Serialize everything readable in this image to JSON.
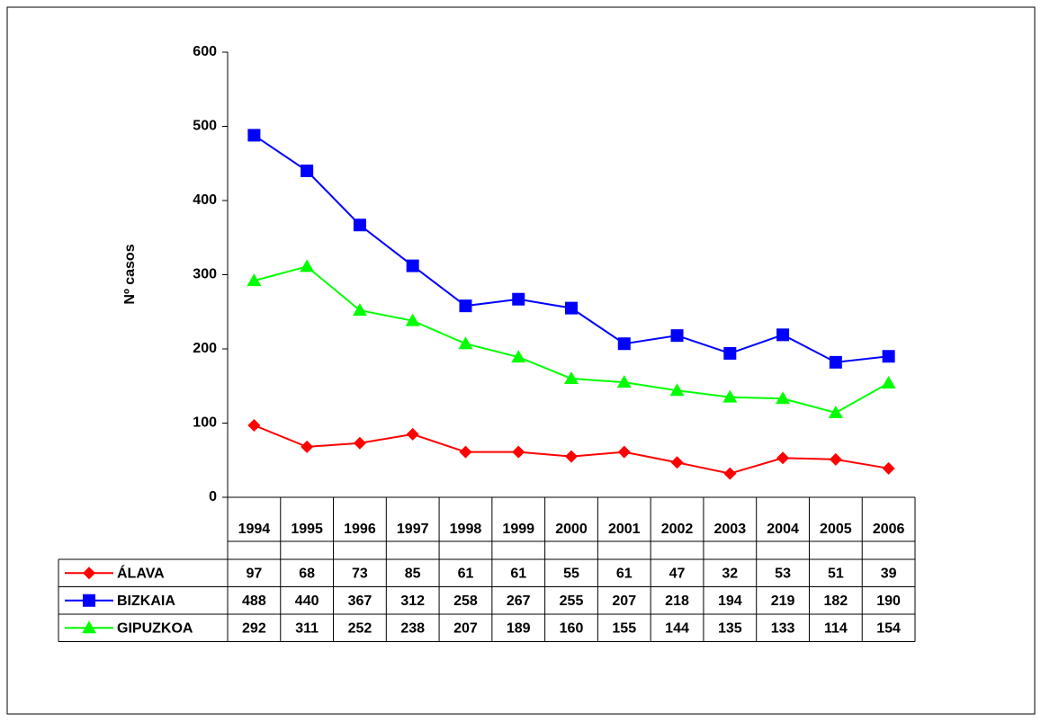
{
  "chart_data": {
    "type": "line",
    "y_label": "Nº casos",
    "categories": [
      "1994",
      "1995",
      "1996",
      "1997",
      "1998",
      "1999",
      "2000",
      "2001",
      "2002",
      "2003",
      "2004",
      "2005",
      "2006"
    ],
    "series": [
      {
        "name": "ÁLAVA",
        "color": "#ff0000",
        "marker": "diamond",
        "values": [
          97,
          68,
          73,
          85,
          61,
          61,
          55,
          61,
          47,
          32,
          53,
          51,
          39
        ]
      },
      {
        "name": "BIZKAIA",
        "color": "#0000ff",
        "marker": "square",
        "values": [
          488,
          440,
          367,
          312,
          258,
          267,
          255,
          207,
          218,
          194,
          219,
          182,
          190
        ]
      },
      {
        "name": "GIPUZKOA",
        "color": "#00ff00",
        "marker": "triangle",
        "values": [
          292,
          311,
          252,
          238,
          207,
          189,
          160,
          155,
          144,
          135,
          133,
          114,
          154
        ]
      }
    ],
    "ylim": [
      0,
      600
    ],
    "yticks": [
      0,
      100,
      200,
      300,
      400,
      500,
      600
    ],
    "data_table": true
  }
}
